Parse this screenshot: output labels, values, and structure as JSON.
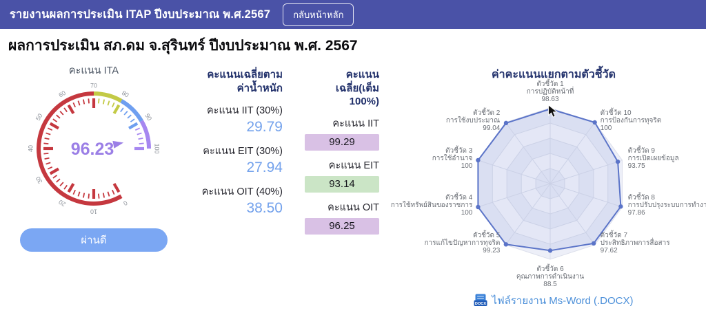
{
  "header": {
    "title": "รายงานผลการประเมิน ITAP ปีงบประมาณ พ.ศ.2567",
    "back_button_label": "กลับหน้าหลัก"
  },
  "page": {
    "title": "ผลการประเมิน สภ.ดม จ.สุรินทร์ ปีงบประมาณ พ.ศ. 2567"
  },
  "gauge": {
    "title": "คะแนน ITA",
    "value_text": "96.23",
    "result_label": "ผ่านดี"
  },
  "weighted": {
    "title": "คะแนนเฉลี่ยตามค่าน้ำหนัก",
    "rows": [
      {
        "label": "คะแนน IIT (30%)",
        "value": "29.79"
      },
      {
        "label": "คะแนน EIT (30%)",
        "value": "27.94"
      },
      {
        "label": "คะแนน OIT (40%)",
        "value": "38.50"
      }
    ]
  },
  "average": {
    "title": "คะแนนเฉลี่ย(เต็ม 100%)",
    "rows": [
      {
        "label": "คะแนน IIT",
        "value": "99.29",
        "color": "#d9c1e5"
      },
      {
        "label": "คะแนน EIT",
        "value": "93.14",
        "color": "#cbe5c6"
      },
      {
        "label": "คะแนน OIT",
        "value": "96.25",
        "color": "#d9c1e5"
      }
    ]
  },
  "radar_section": {
    "title": "ค่าคะแนนแยกตามตัวชี้วัด"
  },
  "report_link": {
    "label": "ไฟล์รายงาน Ms-Word (.DOCX)",
    "icon": "docx-file-icon",
    "icon_text": "DOCX"
  },
  "colors": {
    "header_bg": "#4a52a7",
    "weighted_value": "#74a2ec",
    "result_button_bg": "#7ba7f3",
    "link_blue": "#4b8fd9",
    "box_purple": "#d9c1e5",
    "box_green": "#cbe5c6",
    "radar_stroke": "#5b74c8",
    "gauge_value_purple": "#9b7fe6"
  },
  "chart_data": [
    {
      "type": "gauge",
      "title": "คะแนน ITA",
      "value": 96.23,
      "value_display": "96.23",
      "min": 0,
      "max": 100,
      "major_tick_step": 10,
      "minor_tick_step": 2,
      "zones": [
        {
          "from": 0,
          "to": 70,
          "color": "#c5383f"
        },
        {
          "from": 70,
          "to": 80,
          "color": "#c3ca46"
        },
        {
          "from": 80,
          "to": 90,
          "color": "#6f9ff0"
        },
        {
          "from": 90,
          "to": 100,
          "color": "#a687f0"
        }
      ],
      "value_color": "#9b7fe6",
      "result_label": "ผ่านดี"
    },
    {
      "type": "radar",
      "title": "ค่าคะแนนแยกตามตัวชี้วัด",
      "max": 100,
      "rings": 5,
      "indicators": [
        {
          "name": "ตัวชี้วัด 1",
          "detail": "การปฏิบัติหน้าที่",
          "value": 98.63
        },
        {
          "name": "ตัวชี้วัด 2",
          "detail": "การใช้งบประมาณ",
          "value": 99.04
        },
        {
          "name": "ตัวชี้วัด 3",
          "detail": "การใช้อำนาจ",
          "value": 100
        },
        {
          "name": "ตัวชี้วัด 4",
          "detail": "การใช้ทรัพย์สินของราชการ",
          "value": 100
        },
        {
          "name": "ตัวชี้วัด 5",
          "detail": "การแก้ไขปัญหาการทุจริต",
          "value": 99.23
        },
        {
          "name": "ตัวชี้วัด 6",
          "detail": "คุณภาพการดำเนินงาน",
          "value": 88.5
        },
        {
          "name": "ตัวชี้วัด 7",
          "detail": "ประสิทธิภาพการสื่อสาร",
          "value": 97.62
        },
        {
          "name": "ตัวชี้วัด 8",
          "detail": "การปรับปรุงระบบการทำงาน",
          "value": 97.86
        },
        {
          "name": "ตัวชี้วัด 9",
          "detail": "การเปิดเผยข้อมูล",
          "value": 93.75
        },
        {
          "name": "ตัวชี้วัด 10",
          "detail": "การป้องกันการทุจริต",
          "value": 100
        }
      ],
      "stroke_color": "#5b74c8",
      "fill_color": "rgba(91,116,200,0.13)"
    }
  ]
}
